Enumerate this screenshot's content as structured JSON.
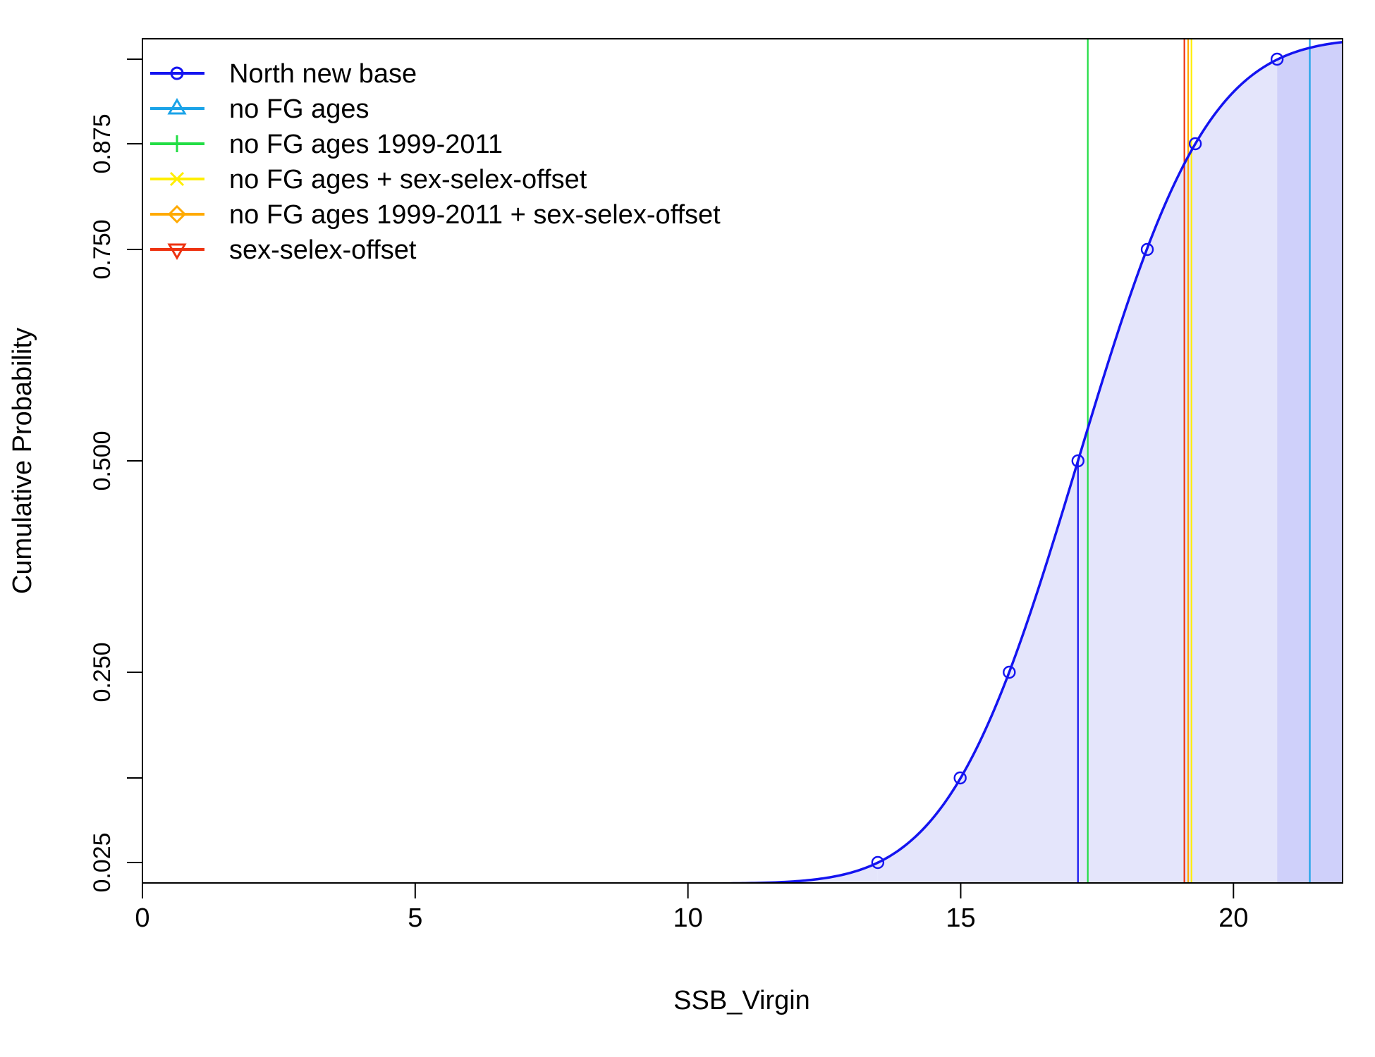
{
  "chart_data": {
    "type": "line",
    "xlabel": "SSB_Virgin",
    "ylabel": "Cumulative Probability",
    "xlim": [
      0,
      22
    ],
    "ylim": [
      0,
      1
    ],
    "x_ticks": [
      "0",
      "5",
      "10",
      "15",
      "20"
    ],
    "y_ticks": [
      "0.025",
      "0.250",
      "0.500",
      "0.750",
      "0.875"
    ],
    "y_tick_values": [
      0.025,
      0.25,
      0.5,
      0.75,
      0.875
    ],
    "y_minor_ticks": [
      0.125,
      0.975
    ],
    "grid": false,
    "legend_position": "top-left",
    "colors": {
      "curve": "#1414f0",
      "fill_light": "#e4e5fb",
      "fill_dark": "#cfd0fa"
    },
    "series": [
      {
        "name": "North new base",
        "color": "#1414f0",
        "marker": "circle",
        "cdf_mean": 17.15,
        "cdf_sd": 1.87,
        "points": [
          {
            "x": 13.48,
            "y": 0.025
          },
          {
            "x": 14.99,
            "y": 0.125
          },
          {
            "x": 15.89,
            "y": 0.25
          },
          {
            "x": 17.15,
            "y": 0.5
          },
          {
            "x": 18.42,
            "y": 0.75
          },
          {
            "x": 19.3,
            "y": 0.875
          },
          {
            "x": 20.8,
            "y": 0.975
          }
        ],
        "value": 17.15
      },
      {
        "name": "no FG ages",
        "color": "#1aa3e8",
        "marker": "triangle",
        "value": 21.4
      },
      {
        "name": "no FG ages 1999-2011",
        "color": "#22dd44",
        "marker": "plus",
        "value": 17.33
      },
      {
        "name": "no FG ages + sex-selex-offset",
        "color": "#ffee00",
        "marker": "x",
        "value": 19.23
      },
      {
        "name": "no FG ages 1999-2011 + sex-selex-offset",
        "color": "#ffaa00",
        "marker": "diamond",
        "value": 19.17
      },
      {
        "name": "sex-selex-offset",
        "color": "#ee3311",
        "marker": "triangle-down",
        "value": 19.1
      }
    ],
    "shaded_intervals": [
      {
        "from": 0,
        "to": 13.48,
        "shade": "fill_light"
      },
      {
        "from": 13.48,
        "to": 20.8,
        "shade": "fill_light"
      },
      {
        "from": 20.8,
        "to": 22,
        "shade": "fill_dark"
      }
    ]
  }
}
